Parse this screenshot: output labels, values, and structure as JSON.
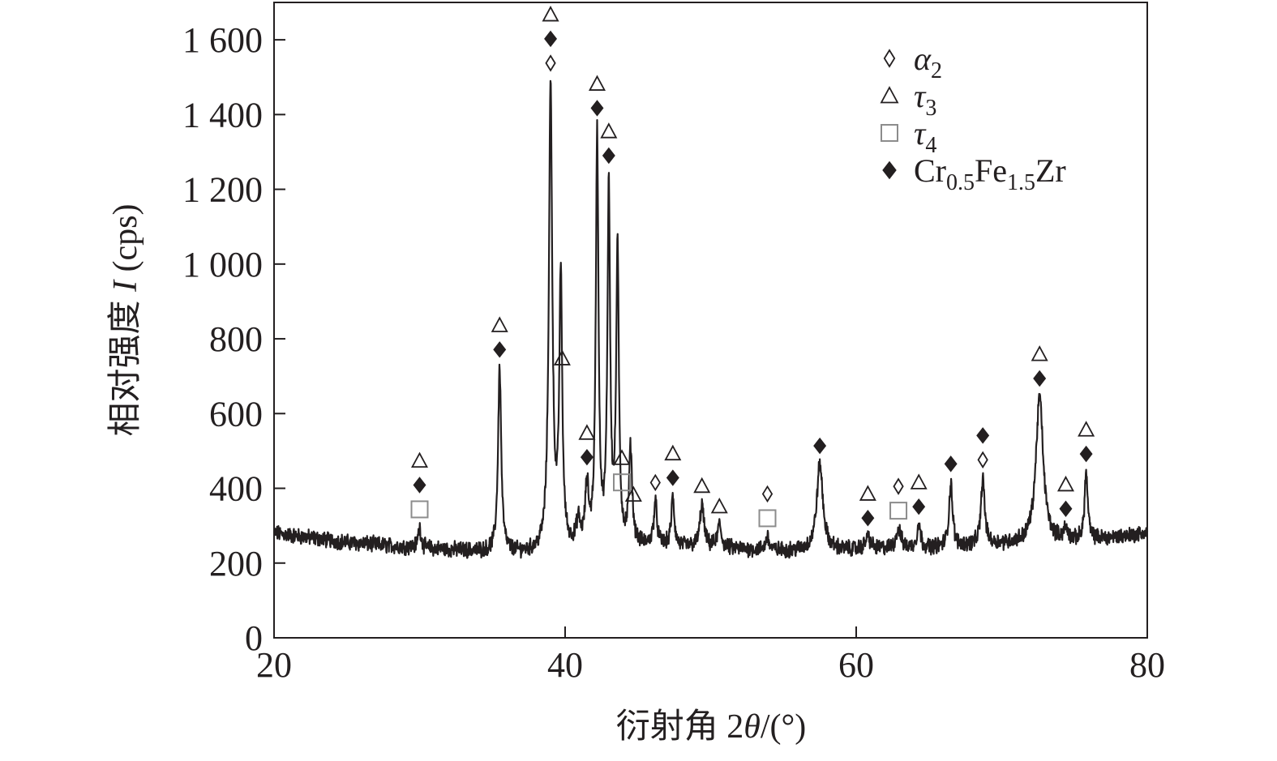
{
  "chart_data": {
    "type": "line",
    "title": "",
    "xlabel_text": "衍射角 2",
    "xlabel_symbol": "θ",
    "xlabel_unit": "/(°)",
    "ylabel_text": "相对强度 ",
    "ylabel_symbol": "I",
    "ylabel_unit": " (cps)",
    "xlim": [
      20,
      80
    ],
    "ylim": [
      0,
      1700
    ],
    "xticks": [
      20,
      40,
      60,
      80
    ],
    "xtick_labels": [
      "20",
      "40",
      "60",
      "80"
    ],
    "yticks": [
      0,
      200,
      400,
      600,
      800,
      1000,
      1200,
      1400,
      1600
    ],
    "ytick_labels": [
      "0",
      "200",
      "400",
      "600",
      "800",
      "1 000",
      "1 200",
      "1 400",
      "1 600"
    ],
    "grid": false,
    "legend_position": "top-right",
    "legend": [
      {
        "marker": "open-diamond",
        "base": "α",
        "sub1": "2",
        "mid": "",
        "sub2": "",
        "tail": ""
      },
      {
        "marker": "open-triangle",
        "base": "τ",
        "sub1": "3",
        "mid": "",
        "sub2": "",
        "tail": ""
      },
      {
        "marker": "gray-square",
        "base": "τ",
        "sub1": "4",
        "mid": "",
        "sub2": "",
        "tail": ""
      },
      {
        "marker": "filled-diamond",
        "base": "Cr",
        "sub1": "0.5",
        "mid": "Fe",
        "sub2": "1.5",
        "tail": "Zr"
      }
    ],
    "series": [
      {
        "baseline_points": [
          [
            20,
            280
          ],
          [
            25,
            255
          ],
          [
            30,
            240
          ],
          [
            35,
            228
          ],
          [
            38,
            225
          ],
          [
            42,
            240
          ],
          [
            46,
            245
          ],
          [
            50,
            240
          ],
          [
            55,
            232
          ],
          [
            60,
            235
          ],
          [
            65,
            240
          ],
          [
            70,
            250
          ],
          [
            75,
            255
          ],
          [
            80,
            280
          ]
        ],
        "peaks": [
          {
            "x": 30.0,
            "y": 295,
            "w": 0.12
          },
          {
            "x": 35.5,
            "y": 720,
            "w": 0.13
          },
          {
            "x": 39.0,
            "y": 1465,
            "w": 0.14
          },
          {
            "x": 39.7,
            "y": 950,
            "w": 0.12
          },
          {
            "x": 40.9,
            "y": 300,
            "w": 0.15
          },
          {
            "x": 41.5,
            "y": 390,
            "w": 0.14
          },
          {
            "x": 42.2,
            "y": 1335,
            "w": 0.11
          },
          {
            "x": 43.0,
            "y": 1190,
            "w": 0.11
          },
          {
            "x": 43.6,
            "y": 1025,
            "w": 0.11
          },
          {
            "x": 44.5,
            "y": 495,
            "w": 0.13
          },
          {
            "x": 46.2,
            "y": 360,
            "w": 0.13
          },
          {
            "x": 47.4,
            "y": 375,
            "w": 0.12
          },
          {
            "x": 49.4,
            "y": 355,
            "w": 0.16
          },
          {
            "x": 50.6,
            "y": 300,
            "w": 0.16
          },
          {
            "x": 53.9,
            "y": 270,
            "w": 0.13
          },
          {
            "x": 57.5,
            "y": 465,
            "w": 0.25
          },
          {
            "x": 60.8,
            "y": 270,
            "w": 0.2
          },
          {
            "x": 62.9,
            "y": 290,
            "w": 0.2
          },
          {
            "x": 64.3,
            "y": 300,
            "w": 0.15
          },
          {
            "x": 66.5,
            "y": 415,
            "w": 0.14
          },
          {
            "x": 68.7,
            "y": 425,
            "w": 0.15
          },
          {
            "x": 72.6,
            "y": 645,
            "w": 0.3
          },
          {
            "x": 74.4,
            "y": 285,
            "w": 0.2
          },
          {
            "x": 75.8,
            "y": 440,
            "w": 0.13
          }
        ]
      }
    ],
    "annotations": [
      {
        "x": 30.0,
        "markers": [
          "open-triangle",
          "filled-diamond",
          "gray-square"
        ]
      },
      {
        "x": 35.5,
        "markers": [
          "open-triangle",
          "filled-diamond"
        ]
      },
      {
        "x": 39.0,
        "markers": [
          "open-triangle",
          "filled-diamond",
          "open-diamond"
        ]
      },
      {
        "x": 39.8,
        "markers": [
          "open-triangle"
        ]
      },
      {
        "x": 41.5,
        "markers": [
          "open-triangle",
          "filled-diamond"
        ]
      },
      {
        "x": 42.2,
        "markers": [
          "open-triangle",
          "filled-diamond"
        ]
      },
      {
        "x": 43.0,
        "markers": [
          "open-triangle",
          "filled-diamond"
        ]
      },
      {
        "x": 43.9,
        "markers": [
          "open-triangle",
          "gray-square"
        ]
      },
      {
        "x": 44.7,
        "markers": [
          "open-triangle"
        ]
      },
      {
        "x": 46.2,
        "markers": [
          "open-diamond"
        ]
      },
      {
        "x": 47.4,
        "markers": [
          "open-triangle",
          "filled-diamond"
        ]
      },
      {
        "x": 49.4,
        "markers": [
          "open-triangle"
        ]
      },
      {
        "x": 50.6,
        "markers": [
          "open-triangle"
        ]
      },
      {
        "x": 53.9,
        "markers": [
          "open-diamond",
          "gray-square"
        ]
      },
      {
        "x": 57.5,
        "markers": [
          "filled-diamond"
        ]
      },
      {
        "x": 60.8,
        "markers": [
          "open-triangle",
          "filled-diamond"
        ]
      },
      {
        "x": 62.9,
        "markers": [
          "open-diamond",
          "gray-square"
        ]
      },
      {
        "x": 64.3,
        "markers": [
          "open-triangle",
          "filled-diamond"
        ]
      },
      {
        "x": 66.5,
        "markers": [
          "filled-diamond"
        ]
      },
      {
        "x": 68.7,
        "markers": [
          "filled-diamond",
          "open-diamond"
        ]
      },
      {
        "x": 72.6,
        "markers": [
          "open-triangle",
          "filled-diamond"
        ]
      },
      {
        "x": 74.4,
        "markers": [
          "open-triangle",
          "filled-diamond"
        ]
      },
      {
        "x": 75.8,
        "markers": [
          "open-triangle",
          "filled-diamond"
        ]
      }
    ]
  },
  "colors": {
    "line": "#231f20",
    "axis": "#231f20",
    "gray_marker": "#8c8c8c",
    "background": "#ffffff"
  }
}
